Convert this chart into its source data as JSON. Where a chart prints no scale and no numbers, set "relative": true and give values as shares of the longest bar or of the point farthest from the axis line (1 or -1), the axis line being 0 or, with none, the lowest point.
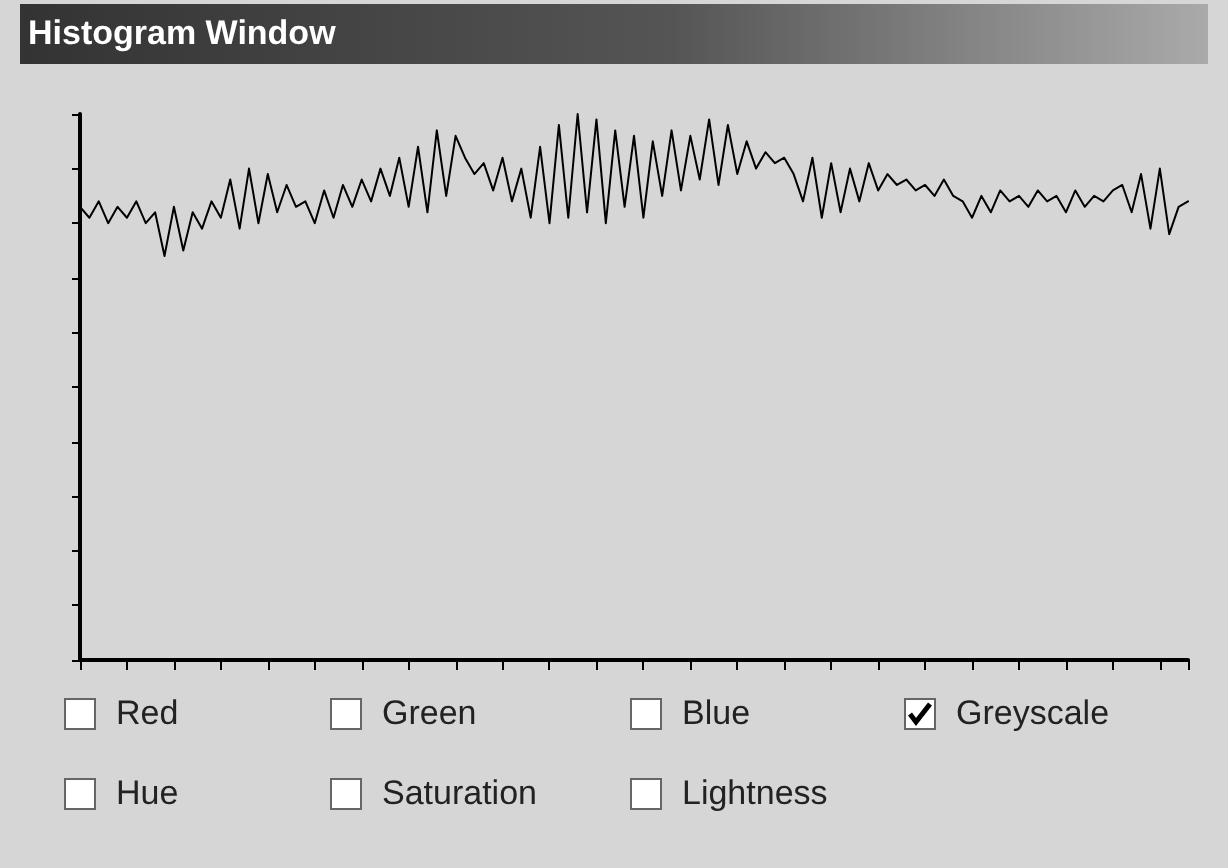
{
  "chart_data": {
    "type": "line",
    "title": "Histogram Window",
    "relative": true,
    "grid": false,
    "line_style": "solid",
    "categories": [
      null,
      null,
      null,
      null,
      null,
      null,
      null,
      null,
      null,
      null,
      null,
      null,
      null,
      null,
      null,
      null,
      null,
      null,
      null,
      null,
      null,
      null,
      null,
      null,
      null,
      null,
      null,
      null,
      null,
      null,
      null,
      null,
      null,
      null,
      null,
      null,
      null,
      null,
      null,
      null,
      null,
      null,
      null,
      null,
      null,
      null,
      null,
      null,
      null,
      null,
      null,
      null,
      null,
      null,
      null,
      null,
      null,
      null,
      null,
      null,
      null,
      null,
      null,
      null,
      null,
      null,
      null,
      null,
      null,
      null,
      null,
      null,
      null,
      null,
      null,
      null,
      null,
      null,
      null,
      null,
      null,
      null,
      null,
      null,
      null,
      null,
      null,
      null,
      null,
      null,
      null,
      null,
      null,
      null,
      null,
      null,
      null,
      null,
      null,
      null,
      null,
      null,
      null,
      null,
      null,
      null,
      null,
      null,
      null,
      null,
      null,
      null,
      null,
      null,
      null,
      null,
      null,
      null,
      null
    ],
    "series": [
      {
        "color": "#000000",
        "values": [
          0.83,
          0.81,
          0.84,
          0.8,
          0.83,
          0.81,
          0.84,
          0.8,
          0.82,
          0.74,
          0.83,
          0.75,
          0.82,
          0.79,
          0.84,
          0.81,
          0.88,
          0.79,
          0.9,
          0.8,
          0.89,
          0.82,
          0.87,
          0.83,
          0.84,
          0.8,
          0.86,
          0.81,
          0.87,
          0.83,
          0.88,
          0.84,
          0.9,
          0.85,
          0.92,
          0.83,
          0.94,
          0.82,
          0.97,
          0.85,
          0.96,
          0.92,
          0.89,
          0.91,
          0.86,
          0.92,
          0.84,
          0.9,
          0.81,
          0.94,
          0.8,
          0.98,
          0.81,
          1.0,
          0.82,
          0.99,
          0.8,
          0.97,
          0.83,
          0.96,
          0.81,
          0.95,
          0.85,
          0.97,
          0.86,
          0.96,
          0.88,
          0.99,
          0.87,
          0.98,
          0.89,
          0.95,
          0.9,
          0.93,
          0.91,
          0.92,
          0.89,
          0.84,
          0.92,
          0.81,
          0.91,
          0.82,
          0.9,
          0.84,
          0.91,
          0.86,
          0.89,
          0.87,
          0.88,
          0.86,
          0.87,
          0.85,
          0.88,
          0.85,
          0.84,
          0.81,
          0.85,
          0.82,
          0.86,
          0.84,
          0.85,
          0.83,
          0.86,
          0.84,
          0.85,
          0.82,
          0.86,
          0.83,
          0.85,
          0.84,
          0.86,
          0.87,
          0.82,
          0.89,
          0.79,
          0.9,
          0.78,
          0.83,
          0.84
        ]
      }
    ],
    "annotations": [
      "Red",
      "Green",
      "Blue",
      "Greyscale",
      "Hue",
      "Saturation",
      "Lightness"
    ]
  }
}
